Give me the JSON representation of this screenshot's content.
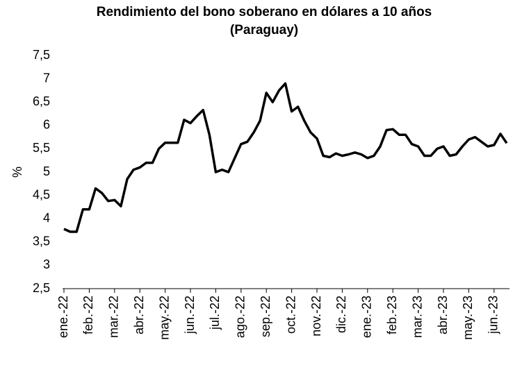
{
  "chart_data": {
    "type": "line",
    "title": "Rendimiento del bono soberano en dólares a 10 años",
    "subtitle": "(Paraguay)",
    "y_label": "%",
    "categories": [
      "ene.-22",
      null,
      null,
      null,
      "feb.-22",
      null,
      null,
      null,
      "mar.-22",
      null,
      null,
      null,
      "abr.-22",
      null,
      null,
      null,
      "may.-22",
      null,
      null,
      null,
      "jun.-22",
      null,
      null,
      null,
      "jul.-22",
      null,
      null,
      null,
      "ago.-22",
      null,
      null,
      null,
      "sep.-22",
      null,
      null,
      null,
      "oct.-22",
      null,
      null,
      null,
      "nov.-22",
      null,
      null,
      null,
      "dic.-22",
      null,
      null,
      null,
      "ene.-23",
      null,
      null,
      null,
      "feb.-23",
      null,
      null,
      null,
      "mar.-23",
      null,
      null,
      null,
      "abr.-23",
      null,
      null,
      null,
      "may.-23",
      null,
      null,
      null,
      "jun.-23",
      null,
      null
    ],
    "series": [
      {
        "color": "#000000",
        "values": [
          3.78,
          3.72,
          3.72,
          4.2,
          4.2,
          4.65,
          4.55,
          4.38,
          4.4,
          4.27,
          4.85,
          5.05,
          5.1,
          5.2,
          5.2,
          5.5,
          5.63,
          5.63,
          5.63,
          6.12,
          6.05,
          6.2,
          6.33,
          5.8,
          5.0,
          5.05,
          5.0,
          5.3,
          5.6,
          5.65,
          5.85,
          6.1,
          6.7,
          6.5,
          6.75,
          6.9,
          6.3,
          6.4,
          6.1,
          5.85,
          5.72,
          5.35,
          5.32,
          5.4,
          5.35,
          5.38,
          5.42,
          5.38,
          5.3,
          5.35,
          5.55,
          5.9,
          5.92,
          5.8,
          5.8,
          5.6,
          5.55,
          5.35,
          5.35,
          5.5,
          5.55,
          5.35,
          5.38,
          5.55,
          5.7,
          5.75,
          5.65,
          5.55,
          5.58,
          5.82,
          5.62
        ]
      }
    ],
    "ylim": [
      2.5,
      7.5
    ],
    "yticks": [
      {
        "value": 2.5,
        "label": "2,5"
      },
      3,
      {
        "value": 3.5,
        "label": "3,5"
      },
      4,
      {
        "value": 4.5,
        "label": "4,5"
      },
      5,
      {
        "value": 5.5,
        "label": "5,5"
      },
      6,
      {
        "value": 6.5,
        "label": "6,5"
      },
      7,
      {
        "value": 7.5,
        "label": "7,5"
      }
    ],
    "grid": false
  }
}
